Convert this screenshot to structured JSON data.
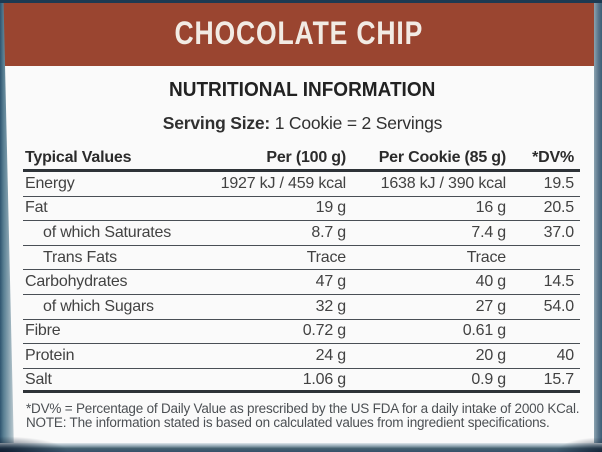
{
  "header": {
    "title": "CHOCOLATE CHIP",
    "band_color": "#9a4530",
    "text_color": "#f2ebe4"
  },
  "section": {
    "title": "NUTRITIONAL INFORMATION",
    "serving_label": "Serving Size:",
    "serving_value": " 1 Cookie = 2 Servings"
  },
  "table": {
    "columns": [
      "Typical Values",
      "Per (100 g)",
      "Per Cookie (85 g)",
      "*DV%"
    ],
    "rows": [
      {
        "name": "Energy",
        "indent": false,
        "per100": "1927 kJ / 459 kcal",
        "perCookie": "1638 kJ / 390 kcal",
        "dv": "19.5"
      },
      {
        "name": "Fat",
        "indent": false,
        "per100": "19 g",
        "perCookie": "16 g",
        "dv": "20.5"
      },
      {
        "name": "of which Saturates",
        "indent": true,
        "per100": "8.7 g",
        "perCookie": "7.4 g",
        "dv": "37.0"
      },
      {
        "name": "Trans Fats",
        "indent": true,
        "per100": "Trace",
        "perCookie": "Trace",
        "dv": ""
      },
      {
        "name": "Carbohydrates",
        "indent": false,
        "per100": "47 g",
        "perCookie": "40 g",
        "dv": "14.5"
      },
      {
        "name": "of which Sugars",
        "indent": true,
        "per100": "32 g",
        "perCookie": "27 g",
        "dv": "54.0"
      },
      {
        "name": "Fibre",
        "indent": false,
        "per100": "0.72 g",
        "perCookie": "0.61 g",
        "dv": ""
      },
      {
        "name": "Protein",
        "indent": false,
        "per100": "24 g",
        "perCookie": "20 g",
        "dv": "40"
      },
      {
        "name": "Salt",
        "indent": false,
        "per100": "1.06 g",
        "perCookie": "0.9 g",
        "dv": "15.7"
      }
    ]
  },
  "footnotes": [
    "*DV% = Percentage of Daily Value as prescribed by the US FDA for a daily intake of 2000 KCal.",
    "NOTE: The information stated is based on calculated values from ingredient specifications."
  ]
}
